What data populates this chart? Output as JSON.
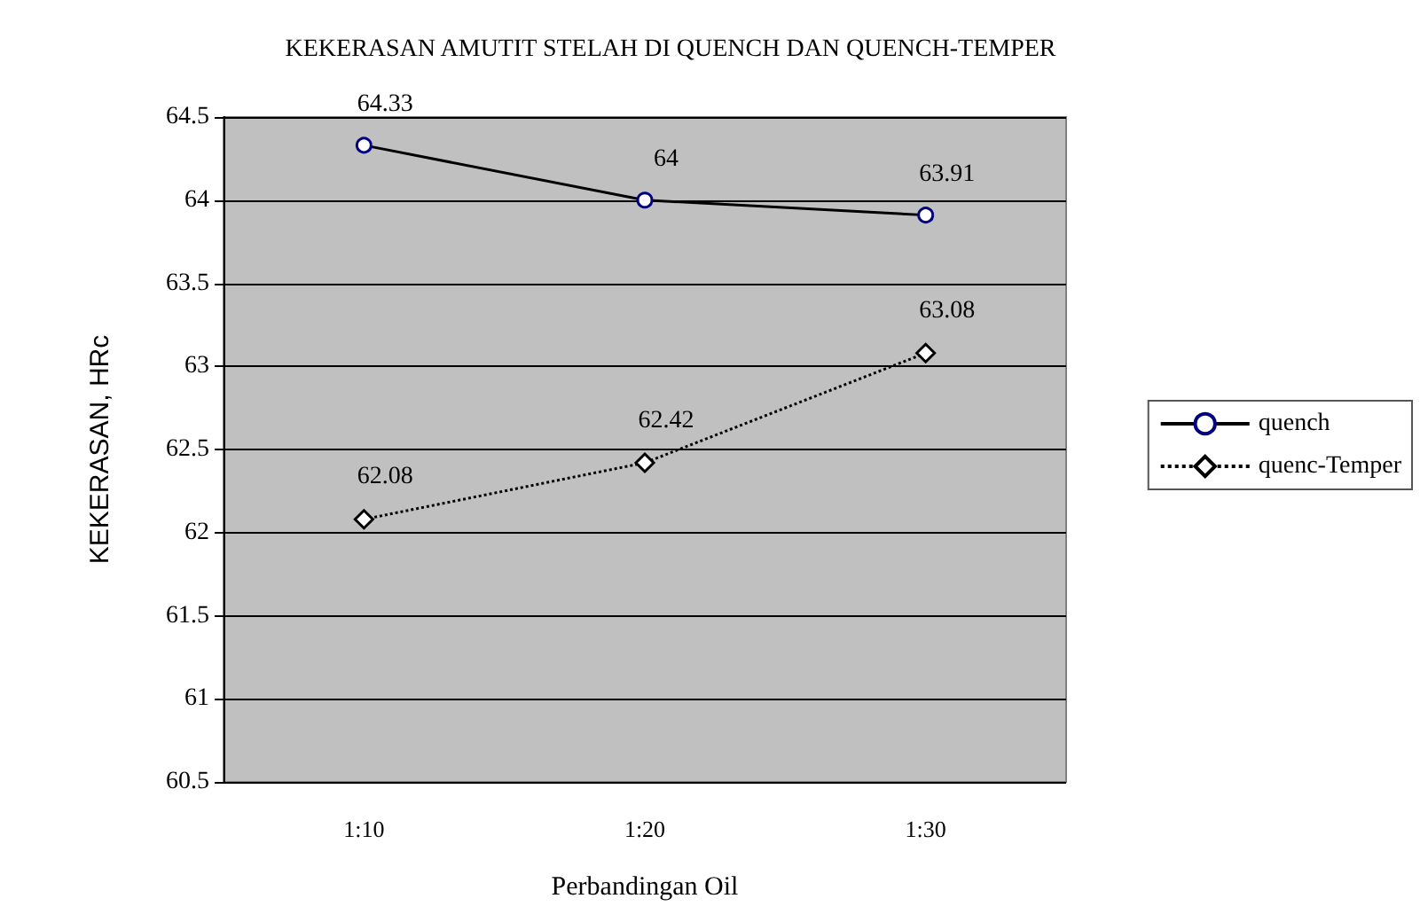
{
  "chart_data": {
    "type": "line",
    "title": "KEKERASAN AMUTIT STELAH DI QUENCH DAN QUENCH-TEMPER",
    "xlabel": "Perbandingan Oil",
    "ylabel": "KEKERASAN, HRc",
    "categories": [
      "1:10",
      "1:20",
      "1:30"
    ],
    "series": [
      {
        "name": "quench",
        "color": "#000000",
        "marker": "circle",
        "line_style": "solid",
        "values": [
          64.33,
          64,
          63.91
        ]
      },
      {
        "name": "quenc-Temper",
        "color": "#000000",
        "marker": "diamond",
        "line_style": "dotted",
        "values": [
          62.08,
          62.42,
          63.08
        ]
      }
    ],
    "ylim": [
      60.5,
      64.5
    ],
    "yticks": [
      60.5,
      61,
      61.5,
      62,
      62.5,
      63,
      63.5,
      64,
      64.5
    ],
    "grid": "y",
    "legend": "right",
    "data_labels": true
  }
}
